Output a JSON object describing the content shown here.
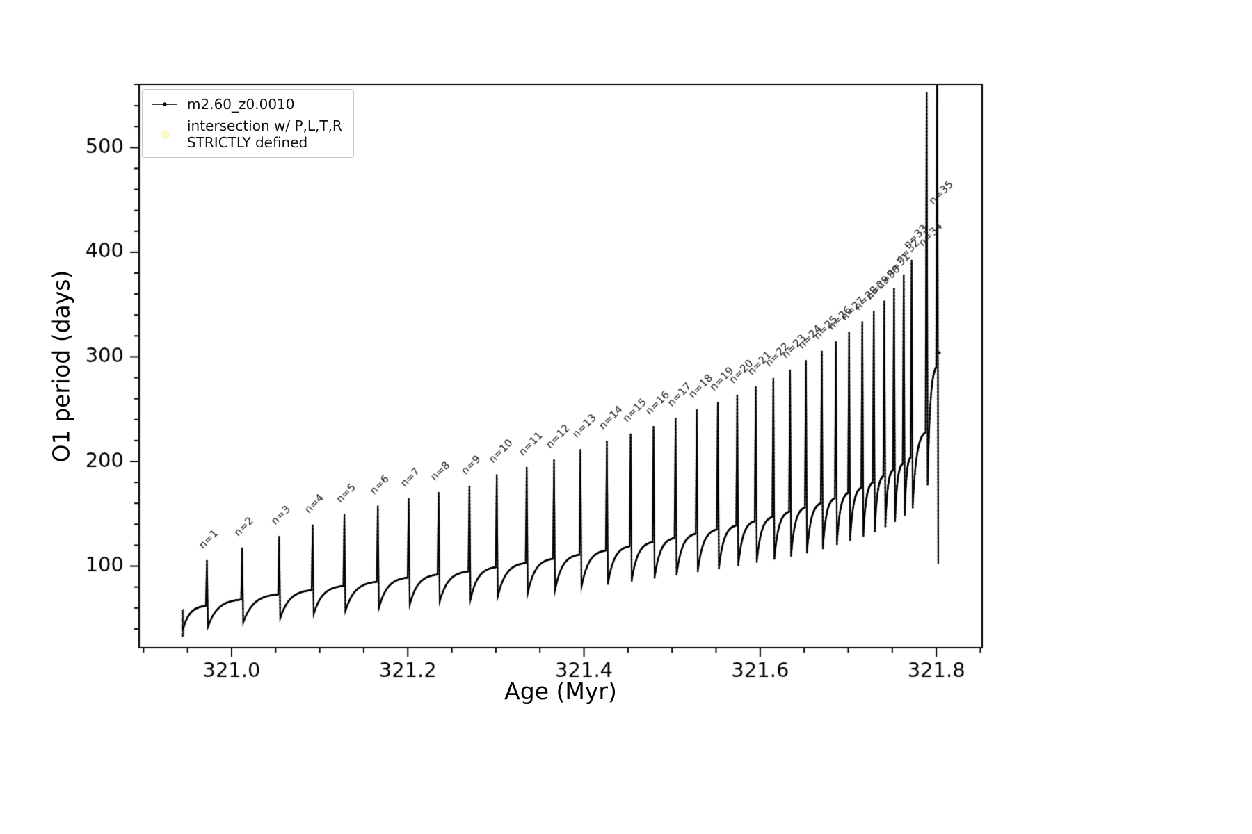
{
  "legend": {
    "items": [
      {
        "label": "m2.60_z0.0010",
        "marker": "line-dot",
        "color": "#000000"
      },
      {
        "label_line1": "intersection w/ P,L,T,R",
        "label_line2": "STRICTLY defined",
        "marker": "circle",
        "color": "#fbf6c3"
      }
    ]
  },
  "chart_data": {
    "type": "line",
    "title": "",
    "xlabel": "Age (Myr)",
    "ylabel": "O1 period (days)",
    "xlim": [
      320.895,
      321.852
    ],
    "ylim": [
      22,
      560
    ],
    "xticks": [
      321.0,
      321.2,
      321.4,
      321.6,
      321.8
    ],
    "xtick_labels": [
      "321.0",
      "321.2",
      "321.4",
      "321.6",
      "321.8"
    ],
    "yticks": [
      100,
      200,
      300,
      400,
      500
    ],
    "ytick_labels": [
      "100",
      "200",
      "300",
      "400",
      "500"
    ],
    "x_minor_step": 0.05,
    "y_minor_step": 20,
    "grid": false,
    "legend_position": "upper left",
    "series": [
      {
        "name": "m2.60_z0.0010",
        "color": "#000000",
        "marker": "point",
        "style": "line+markers"
      }
    ],
    "initial_scatter": {
      "age": 320.944,
      "value_min": 33,
      "value_max": 58
    },
    "start": {
      "age": 320.945,
      "value": 40
    },
    "stray_points": [
      [
        321.8035,
        304
      ]
    ],
    "spikes": [
      {
        "n": 1,
        "label": "n=1",
        "age": 320.972,
        "peak": 105,
        "shoulder_before": 62,
        "dip_after": 42
      },
      {
        "n": 2,
        "label": "n=2",
        "age": 321.012,
        "peak": 117,
        "shoulder_before": 68,
        "dip_after": 46
      },
      {
        "n": 3,
        "label": "n=3",
        "age": 321.054,
        "peak": 128,
        "shoulder_before": 73,
        "dip_after": 50
      },
      {
        "n": 4,
        "label": "n=4",
        "age": 321.092,
        "peak": 139,
        "shoulder_before": 77,
        "dip_after": 54
      },
      {
        "n": 5,
        "label": "n=5",
        "age": 321.128,
        "peak": 149,
        "shoulder_before": 81,
        "dip_after": 57
      },
      {
        "n": 6,
        "label": "n=6",
        "age": 321.166,
        "peak": 157,
        "shoulder_before": 85,
        "dip_after": 60
      },
      {
        "n": 7,
        "label": "n=7",
        "age": 321.201,
        "peak": 164,
        "shoulder_before": 89,
        "dip_after": 63
      },
      {
        "n": 8,
        "label": "n=8",
        "age": 321.235,
        "peak": 170,
        "shoulder_before": 92,
        "dip_after": 66
      },
      {
        "n": 9,
        "label": "n=9",
        "age": 321.27,
        "peak": 176,
        "shoulder_before": 95,
        "dip_after": 68
      },
      {
        "n": 10,
        "label": "n=10",
        "age": 321.301,
        "peak": 187,
        "shoulder_before": 99,
        "dip_after": 71
      },
      {
        "n": 11,
        "label": "n=11",
        "age": 321.335,
        "peak": 194,
        "shoulder_before": 103,
        "dip_after": 74
      },
      {
        "n": 12,
        "label": "n=12",
        "age": 321.366,
        "peak": 201,
        "shoulder_before": 107,
        "dip_after": 77
      },
      {
        "n": 13,
        "label": "n=13",
        "age": 321.396,
        "peak": 211,
        "shoulder_before": 111,
        "dip_after": 80
      },
      {
        "n": 14,
        "label": "n=14",
        "age": 321.426,
        "peak": 219,
        "shoulder_before": 115,
        "dip_after": 83
      },
      {
        "n": 15,
        "label": "n=15",
        "age": 321.453,
        "peak": 226,
        "shoulder_before": 119,
        "dip_after": 86
      },
      {
        "n": 16,
        "label": "n=16",
        "age": 321.479,
        "peak": 233,
        "shoulder_before": 123,
        "dip_after": 89
      },
      {
        "n": 17,
        "label": "n=17",
        "age": 321.504,
        "peak": 241,
        "shoulder_before": 127,
        "dip_after": 92
      },
      {
        "n": 18,
        "label": "n=18",
        "age": 321.528,
        "peak": 249,
        "shoulder_before": 131,
        "dip_after": 95
      },
      {
        "n": 19,
        "label": "n=19",
        "age": 321.552,
        "peak": 256,
        "shoulder_before": 135,
        "dip_after": 98
      },
      {
        "n": 20,
        "label": "n=20",
        "age": 321.574,
        "peak": 263,
        "shoulder_before": 139,
        "dip_after": 101
      },
      {
        "n": 21,
        "label": "n=21",
        "age": 321.595,
        "peak": 271,
        "shoulder_before": 143,
        "dip_after": 104
      },
      {
        "n": 22,
        "label": "n=22",
        "age": 321.615,
        "peak": 279,
        "shoulder_before": 147,
        "dip_after": 107
      },
      {
        "n": 23,
        "label": "n=23",
        "age": 321.634,
        "peak": 287,
        "shoulder_before": 152,
        "dip_after": 110
      },
      {
        "n": 24,
        "label": "n=24",
        "age": 321.652,
        "peak": 296,
        "shoulder_before": 156,
        "dip_after": 113
      },
      {
        "n": 25,
        "label": "n=25",
        "age": 321.67,
        "peak": 305,
        "shoulder_before": 160,
        "dip_after": 117
      },
      {
        "n": 26,
        "label": "n=26",
        "age": 321.686,
        "peak": 314,
        "shoulder_before": 165,
        "dip_after": 121
      },
      {
        "n": 27,
        "label": "n=27",
        "age": 321.701,
        "peak": 323,
        "shoulder_before": 170,
        "dip_after": 125
      },
      {
        "n": 28,
        "label": "n=28",
        "age": 321.716,
        "peak": 333,
        "shoulder_before": 175,
        "dip_after": 129
      },
      {
        "n": 29,
        "label": "n=29",
        "age": 321.729,
        "peak": 343,
        "shoulder_before": 180,
        "dip_after": 133
      },
      {
        "n": 30,
        "label": "n=30",
        "age": 321.741,
        "peak": 353,
        "shoulder_before": 186,
        "dip_after": 138
      },
      {
        "n": 31,
        "label": "n=31",
        "age": 321.752,
        "peak": 365,
        "shoulder_before": 192,
        "dip_after": 143
      },
      {
        "n": 32,
        "label": "n=32",
        "age": 321.763,
        "peak": 378,
        "shoulder_before": 198,
        "dip_after": 149
      },
      {
        "n": 33,
        "label": "n=33",
        "age": 321.772,
        "peak": 392,
        "shoulder_before": 204,
        "dip_after": 156
      },
      {
        "n": 34,
        "label": "n=34",
        "age": 321.789,
        "peak": 552,
        "shoulder_before": 228,
        "dip_after": 178,
        "label_value": 400
      },
      {
        "n": 35,
        "label": "n=35",
        "age": 321.801,
        "peak": 650,
        "shoulder_before": 290,
        "dip_after": 103,
        "label_value": 440
      }
    ]
  }
}
